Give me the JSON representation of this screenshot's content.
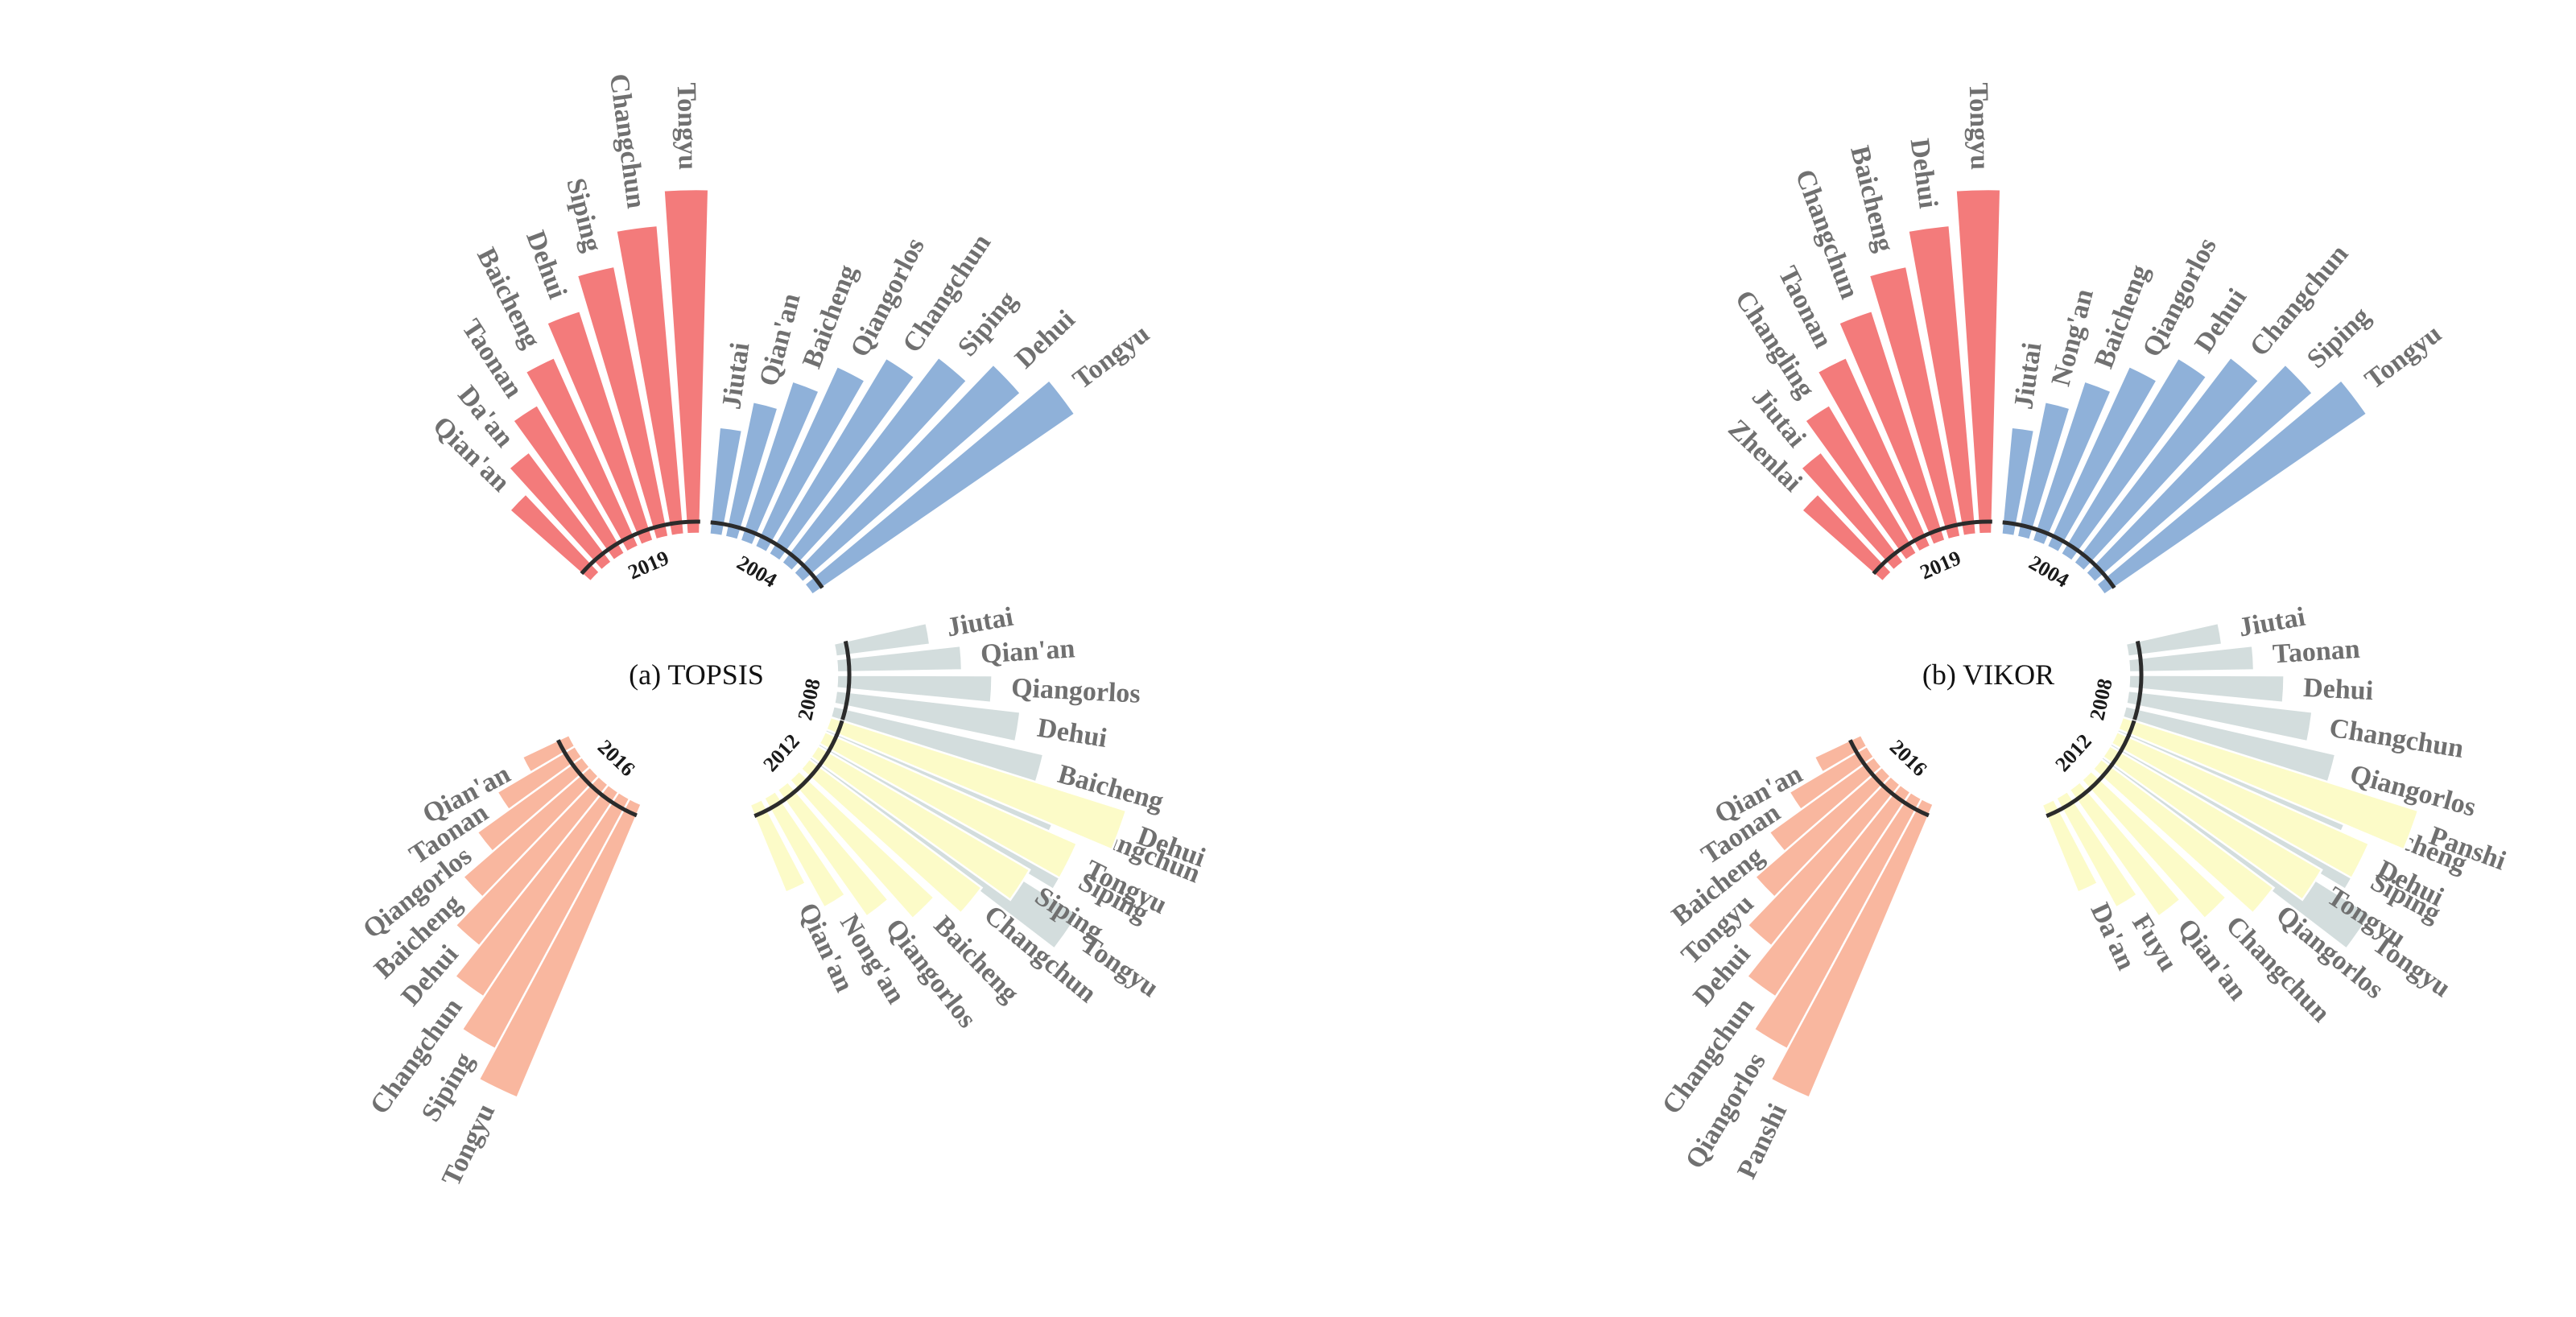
{
  "chart_data": [
    {
      "type": "radial-bar",
      "title": "(a) TOPSIS",
      "value_note": "Relative bar lengths (arbitrary units, estimated from figure); entries per year ordered shortest to longest",
      "groups": [
        {
          "year": "2004",
          "color": "#8fb1d9",
          "cities": [
            "Jiutai",
            "Qian'an",
            "Baicheng",
            "Qiangorlos",
            "Changchun",
            "Siping",
            "Dehui",
            "Tongyu"
          ],
          "values": [
            25,
            32,
            39,
            46,
            53,
            60,
            67,
            74
          ]
        },
        {
          "year": "2008",
          "color": "#d3dddd",
          "cities": [
            "Jiutai",
            "Qian'an",
            "Qiangorlos",
            "Dehui",
            "Baicheng",
            "Changchun",
            "Siping",
            "Tongyu"
          ],
          "values": [
            22,
            29,
            36,
            43,
            50,
            57,
            64,
            72
          ]
        },
        {
          "year": "2012",
          "color": "#fcfbc8",
          "cities": [
            "Qian'an",
            "Nong'an",
            "Qiangorlos",
            "Baicheng",
            "Changchun",
            "Siping",
            "Tongyu",
            "Dehui"
          ],
          "values": [
            22,
            29,
            36,
            43,
            50,
            57,
            64,
            72
          ]
        },
        {
          "year": "2016",
          "color": "#f9b79f",
          "cities": [
            "Qian'an",
            "Taonan",
            "Qiangorlos",
            "Baicheng",
            "Dehui",
            "Changchun",
            "Siping",
            "Tongyu"
          ],
          "values": [
            12,
            21,
            30,
            39,
            48,
            57,
            66,
            74
          ]
        },
        {
          "year": "2019",
          "color": "#f37b7b",
          "cities": [
            "Qian'an",
            "Da'an",
            "Taonan",
            "Baicheng",
            "Dehui",
            "Siping",
            "Changchun",
            "Tongyu"
          ],
          "values": [
            25,
            32,
            40,
            48,
            56,
            64,
            72,
            80
          ]
        }
      ]
    },
    {
      "type": "radial-bar",
      "title": "(b) VIKOR",
      "value_note": "Relative bar lengths (arbitrary units, estimated from figure); entries per year ordered shortest to longest",
      "groups": [
        {
          "year": "2004",
          "color": "#8fb1d9",
          "cities": [
            "Jiutai",
            "Nong'an",
            "Baicheng",
            "Qiangorlos",
            "Dehui",
            "Changchun",
            "Siping",
            "Tongyu"
          ],
          "values": [
            25,
            32,
            39,
            46,
            53,
            60,
            67,
            74
          ]
        },
        {
          "year": "2008",
          "color": "#d3dddd",
          "cities": [
            "Jiutai",
            "Taonan",
            "Dehui",
            "Changchun",
            "Qiangorlos",
            "Baicheng",
            "Siping",
            "Tongyu"
          ],
          "values": [
            22,
            29,
            36,
            43,
            50,
            57,
            64,
            72
          ]
        },
        {
          "year": "2012",
          "color": "#fcfbc8",
          "cities": [
            "Da'an",
            "Fuyu",
            "Qian'an",
            "Changchun",
            "Qiangorlos",
            "Tongyu",
            "Dehui",
            "Panshi"
          ],
          "values": [
            22,
            29,
            36,
            43,
            50,
            57,
            64,
            72
          ]
        },
        {
          "year": "2016",
          "color": "#f9b79f",
          "cities": [
            "Qian'an",
            "Taonan",
            "Baicheng",
            "Tongyu",
            "Dehui",
            "Changchun",
            "Qiangorlos",
            "Panshi"
          ],
          "values": [
            12,
            21,
            30,
            39,
            48,
            57,
            66,
            74
          ]
        },
        {
          "year": "2019",
          "color": "#f37b7b",
          "cities": [
            "Zhenlai",
            "Jiutai",
            "Changling",
            "Taonan",
            "Changchun",
            "Baicheng",
            "Dehui",
            "Tongyu"
          ],
          "values": [
            25,
            32,
            40,
            48,
            56,
            64,
            72,
            80
          ]
        }
      ]
    }
  ]
}
